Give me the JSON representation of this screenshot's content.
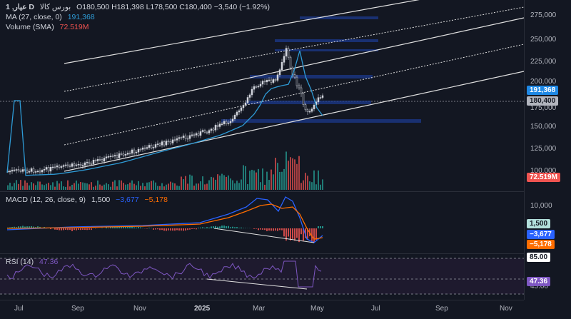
{
  "legend": {
    "symbol": "1 ,عيار D",
    "exchange": "بورس كالا",
    "ohlc": "O180,500  H181,398  L178,500  C180,400  −3,540 (−1.92%)",
    "ma_label": "MA (27, close, 0)",
    "ma_value": "191,368",
    "vol_label": "Volume (SMA)",
    "vol_value": "72.519M",
    "macd_label": "MACD (12, 26, close, 9)",
    "macd_hist": "1,500",
    "macd_line": "−3,677",
    "macd_signal": "−5,178",
    "rsi_label": "RSI (14)",
    "rsi_value": "47.36"
  },
  "price_axis": {
    "ticks": [
      "275,000",
      "250,000",
      "225,000",
      "200,000",
      "175,000",
      "150,000",
      "125,000",
      "100,000"
    ],
    "ma_tag": "191,368",
    "price_tag": "180,400",
    "vol_tag": "72.519M"
  },
  "macd_axis": {
    "tick": "10,000",
    "hist_tag": "1,500",
    "line_tag": "−3,677",
    "signal_tag": "−5,178"
  },
  "rsi_axis": {
    "upper_tag": "85.00",
    "value_tag": "47.36",
    "lower_tick": "45.00"
  },
  "time_axis": [
    "Jul",
    "Sep",
    "Nov",
    "2025",
    "Mar",
    "May",
    "Jul",
    "Sep",
    "Nov"
  ],
  "colors": {
    "background": "#131722",
    "up": "#26a69a",
    "down": "#ef5350",
    "ma": "#2962ff",
    "macd": "#2962ff",
    "signal": "#ff6d00",
    "rsi": "#7e57c2"
  }
}
